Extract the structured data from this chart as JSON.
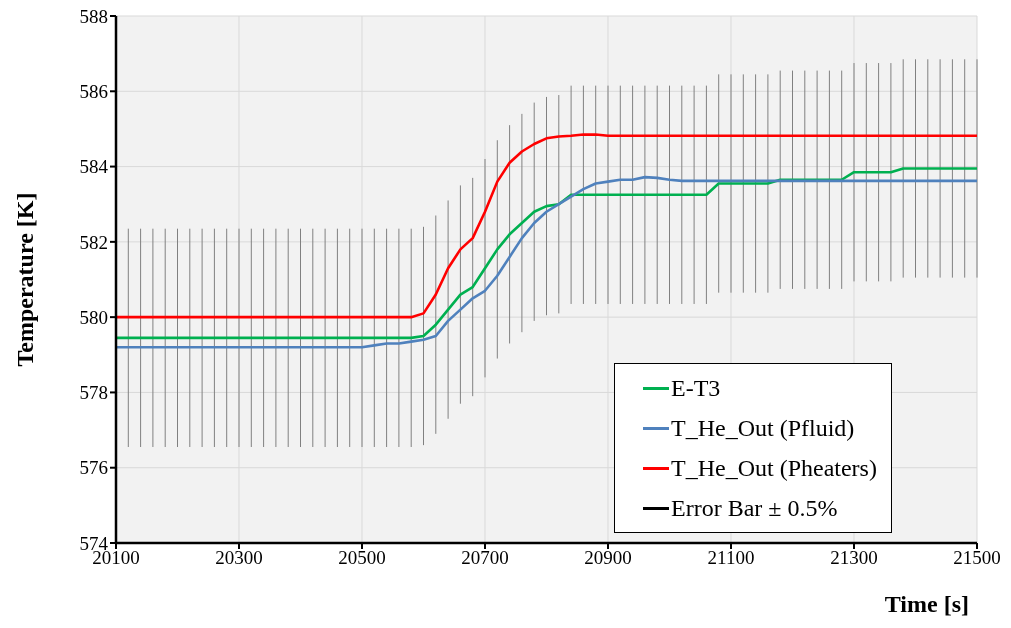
{
  "chart_data": {
    "type": "line",
    "xlabel": "Time [s]",
    "ylabel": "Temperature [K]",
    "x": [
      20100,
      20120,
      20140,
      20160,
      20180,
      20200,
      20220,
      20240,
      20260,
      20280,
      20300,
      20320,
      20340,
      20360,
      20380,
      20400,
      20420,
      20440,
      20460,
      20480,
      20500,
      20520,
      20540,
      20560,
      20580,
      20600,
      20620,
      20640,
      20660,
      20680,
      20700,
      20720,
      20740,
      20760,
      20780,
      20800,
      20820,
      20840,
      20860,
      20880,
      20900,
      20920,
      20940,
      20960,
      20980,
      21000,
      21020,
      21040,
      21060,
      21080,
      21100,
      21120,
      21140,
      21160,
      21180,
      21200,
      21220,
      21240,
      21260,
      21280,
      21300,
      21320,
      21340,
      21360,
      21380,
      21400,
      21420,
      21440,
      21460,
      21480,
      21500
    ],
    "series": [
      {
        "name": "E-T3",
        "color": "#00b050",
        "values": [
          579.45,
          579.45,
          579.45,
          579.45,
          579.45,
          579.45,
          579.45,
          579.45,
          579.45,
          579.45,
          579.45,
          579.45,
          579.45,
          579.45,
          579.45,
          579.45,
          579.45,
          579.45,
          579.45,
          579.45,
          579.45,
          579.45,
          579.45,
          579.45,
          579.45,
          579.5,
          579.8,
          580.2,
          580.6,
          580.8,
          581.3,
          581.8,
          582.2,
          582.5,
          582.8,
          582.95,
          583.0,
          583.25,
          583.25,
          583.25,
          583.25,
          583.25,
          583.25,
          583.25,
          583.25,
          583.25,
          583.25,
          583.25,
          583.25,
          583.55,
          583.55,
          583.55,
          583.55,
          583.55,
          583.65,
          583.65,
          583.65,
          583.65,
          583.65,
          583.65,
          583.85,
          583.85,
          583.85,
          583.85,
          583.95,
          583.95,
          583.95,
          583.95,
          583.95,
          583.95,
          583.95
        ],
        "errors": [
          2.9,
          2.9,
          2.9,
          2.9,
          2.9,
          2.9,
          2.9,
          2.9,
          2.9,
          2.9,
          2.9,
          2.9,
          2.9,
          2.9,
          2.9,
          2.9,
          2.9,
          2.9,
          2.9,
          2.9,
          2.9,
          2.9,
          2.9,
          2.9,
          2.9,
          2.9,
          2.9,
          2.9,
          2.9,
          2.9,
          2.9,
          2.9,
          2.9,
          2.9,
          2.9,
          2.9,
          2.9,
          2.9,
          2.9,
          2.9,
          2.9,
          2.9,
          2.9,
          2.9,
          2.9,
          2.9,
          2.9,
          2.9,
          2.9,
          2.9,
          2.9,
          2.9,
          2.9,
          2.9,
          2.9,
          2.9,
          2.9,
          2.9,
          2.9,
          2.9,
          2.9,
          2.9,
          2.9,
          2.9,
          2.9,
          2.9,
          2.9,
          2.9,
          2.9,
          2.9,
          2.9
        ]
      },
      {
        "name": "T_He_Out (Pfluid)",
        "color": "#4f81bd",
        "values": [
          579.2,
          579.2,
          579.2,
          579.2,
          579.2,
          579.2,
          579.2,
          579.2,
          579.2,
          579.2,
          579.2,
          579.2,
          579.2,
          579.2,
          579.2,
          579.2,
          579.2,
          579.2,
          579.2,
          579.2,
          579.2,
          579.25,
          579.3,
          579.3,
          579.35,
          579.4,
          579.5,
          579.9,
          580.2,
          580.5,
          580.7,
          581.1,
          581.6,
          582.1,
          582.5,
          582.8,
          583.0,
          583.2,
          583.4,
          583.55,
          583.6,
          583.65,
          583.65,
          583.72,
          583.7,
          583.65,
          583.62,
          583.62,
          583.62,
          583.62,
          583.62,
          583.62,
          583.62,
          583.62,
          583.62,
          583.62,
          583.62,
          583.62,
          583.62,
          583.62,
          583.62,
          583.62,
          583.62,
          583.62,
          583.62,
          583.62,
          583.62,
          583.62,
          583.62,
          583.62,
          583.62
        ]
      },
      {
        "name": "T_He_Out (Pheaters)",
        "color": "#ff0000",
        "values": [
          580.0,
          580.0,
          580.0,
          580.0,
          580.0,
          580.0,
          580.0,
          580.0,
          580.0,
          580.0,
          580.0,
          580.0,
          580.0,
          580.0,
          580.0,
          580.0,
          580.0,
          580.0,
          580.0,
          580.0,
          580.0,
          580.0,
          580.0,
          580.0,
          580.0,
          580.1,
          580.6,
          581.3,
          581.8,
          582.1,
          582.8,
          583.6,
          584.1,
          584.4,
          584.6,
          584.75,
          584.8,
          584.82,
          584.85,
          584.85,
          584.82,
          584.82,
          584.82,
          584.82,
          584.82,
          584.82,
          584.82,
          584.82,
          584.82,
          584.82,
          584.82,
          584.82,
          584.82,
          584.82,
          584.82,
          584.82,
          584.82,
          584.82,
          584.82,
          584.82,
          584.82,
          584.82,
          584.82,
          584.82,
          584.82,
          584.82,
          584.82,
          584.82,
          584.82,
          584.82,
          584.82
        ]
      }
    ],
    "annotations": [
      "Error Bar ± 0.5%"
    ],
    "xlim": [
      20100,
      21500
    ],
    "xticks": [
      20100,
      20300,
      20500,
      20700,
      20900,
      21100,
      21300,
      21500
    ],
    "ylim": [
      574,
      588
    ],
    "yticks": [
      574,
      576,
      578,
      580,
      582,
      584,
      586,
      588
    ],
    "grid": true,
    "legend": "bottom right",
    "marker": "none",
    "line_style": "solid"
  }
}
